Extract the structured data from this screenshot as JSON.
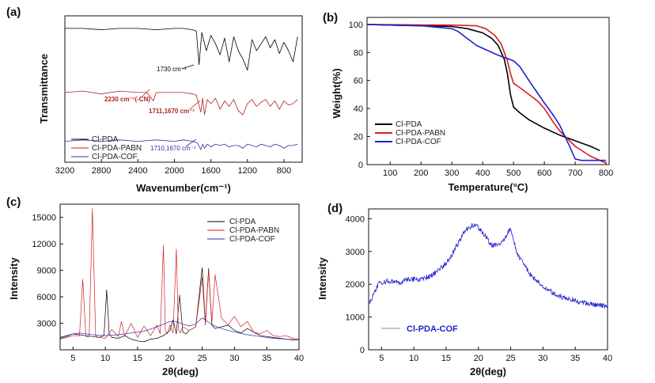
{
  "chart_data": [
    {
      "panel": "(a)",
      "type": "line",
      "xlabel": "Wavenumber(cm⁻¹)",
      "ylabel": "Transmittance",
      "xlim": [
        3200,
        600
      ],
      "x_ticks": [
        3200,
        2800,
        2400,
        2000,
        1600,
        1200,
        800
      ],
      "series": [
        {
          "name": "Cl-PDA",
          "color": "#000000",
          "x": [
            3200,
            3000,
            2800,
            2600,
            2400,
            2200,
            2000,
            1900,
            1800,
            1760,
            1730,
            1700,
            1650,
            1600,
            1550,
            1500,
            1450,
            1400,
            1350,
            1300,
            1250,
            1200,
            1150,
            1100,
            1050,
            1000,
            950,
            900,
            850,
            800,
            750,
            700,
            650
          ],
          "y": [
            96,
            96,
            95,
            96,
            96,
            95,
            96,
            96,
            95,
            94,
            70,
            93,
            80,
            91,
            85,
            77,
            89,
            72,
            90,
            80,
            74,
            66,
            88,
            80,
            85,
            90,
            82,
            88,
            78,
            86,
            80,
            72,
            90
          ]
        },
        {
          "name": "Cl-PDA-PABN",
          "color": "#b22222",
          "x": [
            3200,
            3000,
            2800,
            2600,
            2400,
            2300,
            2230,
            2200,
            2000,
            1900,
            1800,
            1760,
            1711,
            1690,
            1670,
            1640,
            1600,
            1550,
            1500,
            1450,
            1400,
            1350,
            1300,
            1250,
            1200,
            1150,
            1100,
            1050,
            1000,
            950,
            900,
            850,
            800,
            750,
            700,
            650
          ],
          "y": [
            50,
            51,
            49,
            51,
            50,
            50,
            44,
            50,
            50,
            50,
            49,
            48,
            36,
            46,
            34,
            45,
            42,
            46,
            38,
            44,
            40,
            45,
            37,
            34,
            42,
            45,
            40,
            43,
            45,
            40,
            44,
            38,
            44,
            41,
            42,
            45
          ]
        },
        {
          "name": "Cl-PDA-COF",
          "color": "#3030a0",
          "x": [
            3200,
            3000,
            2800,
            2600,
            2400,
            2200,
            2000,
            1900,
            1800,
            1750,
            1710,
            1690,
            1670,
            1640,
            1600,
            1550,
            1500,
            1450,
            1400,
            1350,
            1300,
            1250,
            1200,
            1150,
            1100,
            1050,
            1000,
            950,
            900,
            850,
            800,
            750,
            700,
            650
          ],
          "y": [
            15,
            16,
            15,
            16,
            15,
            16,
            15,
            16,
            15,
            14,
            9,
            13,
            10,
            13,
            11,
            13,
            12,
            13,
            11,
            12,
            12,
            10,
            13,
            12,
            11,
            13,
            12,
            11,
            13,
            12,
            10,
            12,
            12,
            13
          ]
        }
      ],
      "annotations": [
        {
          "text": "1730 cm⁻¹",
          "color": "#000000",
          "x": 1760,
          "y": 70
        },
        {
          "text": "2230 cm⁻¹(-CN)",
          "color": "#b22222",
          "x": 2230,
          "y": 44
        },
        {
          "text": "1711,1670 cm⁻¹",
          "color": "#b22222",
          "x": 1690,
          "y": 36
        },
        {
          "text": "1710,1670 cm⁻¹",
          "color": "#3030a0",
          "x": 1720,
          "y": 9
        }
      ],
      "legend": [
        "Cl-PDA",
        "Cl-PDA-PABN",
        "Cl-PDA-COF"
      ],
      "legend_position": "bottom-left"
    },
    {
      "panel": "(b)",
      "type": "line",
      "xlabel": "Temperature(°C)",
      "ylabel": "Weight(%)",
      "xlim": [
        25,
        810
      ],
      "ylim": [
        0,
        105
      ],
      "x_ticks": [
        100,
        200,
        300,
        400,
        500,
        600,
        700,
        800
      ],
      "y_ticks": [
        0,
        20,
        40,
        60,
        80,
        100
      ],
      "series": [
        {
          "name": "Cl-PDA",
          "color": "#000000",
          "x": [
            25,
            100,
            200,
            300,
            350,
            400,
            430,
            450,
            470,
            480,
            490,
            500,
            520,
            550,
            600,
            650,
            700,
            750,
            780
          ],
          "y": [
            100,
            99.5,
            99,
            98.5,
            97,
            94,
            90,
            85,
            75,
            65,
            50,
            41,
            37,
            32,
            26,
            21,
            17,
            13,
            10
          ]
        },
        {
          "name": "Cl-PDA-PABN",
          "color": "#d42020",
          "x": [
            25,
            100,
            200,
            300,
            380,
            410,
            440,
            460,
            480,
            490,
            500,
            520,
            550,
            580,
            600,
            630,
            650,
            700,
            750,
            790,
            800
          ],
          "y": [
            100,
            99.8,
            99.6,
            99.5,
            99,
            97,
            92,
            86,
            74,
            65,
            58,
            55,
            50,
            45,
            40,
            30,
            24,
            13,
            6,
            2,
            1
          ]
        },
        {
          "name": "Cl-PDA-COF",
          "color": "#1f1fd0",
          "x": [
            25,
            100,
            200,
            300,
            320,
            350,
            380,
            400,
            450,
            500,
            520,
            550,
            600,
            630,
            650,
            680,
            700,
            720,
            780,
            800
          ],
          "y": [
            100,
            99.5,
            99,
            97,
            95,
            90,
            85,
            83,
            78,
            74,
            70,
            60,
            44,
            35,
            28,
            14,
            4,
            3,
            3,
            3
          ]
        }
      ],
      "legend": [
        "Cl-PDA",
        "Cl-PDA-PABN",
        "Cl-PDA-COF"
      ],
      "legend_position": "bottom-left"
    },
    {
      "panel": "(c)",
      "type": "line",
      "xlabel": "2θ(deg)",
      "ylabel": "Intensity",
      "xlim": [
        3,
        40
      ],
      "ylim": [
        0,
        16500
      ],
      "x_ticks": [
        5,
        10,
        15,
        20,
        25,
        30,
        35,
        40
      ],
      "y_ticks": [
        3000,
        6000,
        9000,
        12000,
        15000
      ],
      "series": [
        {
          "name": "Cl-PDA",
          "color": "#000000",
          "x": [
            3,
            4,
            5,
            6,
            7,
            8,
            9,
            9.8,
            10.2,
            10.6,
            11,
            12,
            13,
            14,
            15,
            16,
            17,
            18,
            19,
            20,
            20.5,
            21,
            21.5,
            22,
            22.5,
            23,
            24,
            25,
            25.5,
            26,
            26.5,
            27,
            28,
            29,
            30,
            31,
            32,
            33,
            34,
            35,
            36,
            37,
            38,
            39,
            40
          ],
          "y": [
            1400,
            1600,
            1800,
            1700,
            1600,
            1500,
            1400,
            1600,
            6800,
            1800,
            1400,
            1300,
            1600,
            1200,
            1000,
            900,
            1200,
            1300,
            1600,
            2200,
            3400,
            1800,
            6200,
            2000,
            1800,
            2200,
            2600,
            9300,
            3000,
            9200,
            2800,
            2400,
            2600,
            2800,
            2200,
            1900,
            2400,
            2000,
            1600,
            1500,
            1400,
            1300,
            1200,
            1100,
            1100
          ]
        },
        {
          "name": "Cl-PDA-PABN",
          "color": "#d42020",
          "x": [
            3,
            4,
            5,
            6,
            6.5,
            7,
            7.5,
            8,
            8.5,
            9,
            10,
            11,
            12,
            12.5,
            13,
            14,
            15,
            16,
            17,
            18,
            18.5,
            19,
            19.3,
            19.6,
            20,
            20.5,
            21,
            21.3,
            21.6,
            22,
            23,
            24,
            25,
            25.5,
            26,
            26.5,
            27,
            28,
            29,
            30,
            31,
            32,
            33,
            34,
            35,
            36,
            37,
            38,
            39,
            40
          ],
          "y": [
            1200,
            1400,
            1600,
            1600,
            8000,
            1500,
            1500,
            16000,
            1600,
            1400,
            1300,
            2300,
            1500,
            3200,
            1500,
            3000,
            1400,
            2700,
            1600,
            2800,
            1800,
            11800,
            2200,
            1800,
            2800,
            1900,
            11400,
            2400,
            1900,
            2600,
            2200,
            2600,
            8200,
            2800,
            9000,
            3000,
            8500,
            3600,
            2800,
            3800,
            2600,
            3200,
            2000,
            1800,
            2200,
            1600,
            1500,
            1600,
            1300,
            1200
          ]
        },
        {
          "name": "Cl-PDA-COF",
          "color": "#2828c8",
          "x": [
            3,
            4,
            5,
            6,
            8,
            10,
            12,
            14,
            16,
            18,
            19,
            20,
            21,
            22,
            23,
            24,
            24.5,
            25,
            25.5,
            26,
            27,
            28,
            30,
            32,
            34,
            36,
            38,
            40
          ],
          "y": [
            1300,
            1500,
            1800,
            1900,
            1700,
            1600,
            1700,
            1900,
            2100,
            2600,
            2900,
            3200,
            3200,
            2900,
            2700,
            2900,
            3300,
            3600,
            3400,
            3100,
            2700,
            2400,
            2000,
            1700,
            1500,
            1300,
            1200,
            1100
          ]
        }
      ],
      "legend": [
        "Cl-PDA",
        "Cl-PDA-PABN",
        "Cl-PDA-COF"
      ],
      "legend_position": "top-right"
    },
    {
      "panel": "(d)",
      "type": "line",
      "xlabel": "2θ(deg)",
      "ylabel": "Intensity",
      "xlim": [
        3,
        40
      ],
      "ylim": [
        0,
        4300
      ],
      "x_ticks": [
        5,
        10,
        15,
        20,
        25,
        30,
        35,
        40
      ],
      "y_ticks": [
        0,
        1000,
        2000,
        3000,
        4000
      ],
      "series": [
        {
          "name": "Cl-PDA-COF",
          "color": "#1f1fd0",
          "x": [
            3,
            3.5,
            4,
            4.5,
            5,
            6,
            7,
            8,
            9,
            10,
            11,
            12,
            13,
            14,
            15,
            16,
            17,
            18,
            19,
            20,
            21,
            22,
            23,
            24,
            24.5,
            25,
            25.5,
            26,
            27,
            28,
            29,
            30,
            31,
            32,
            33,
            34,
            35,
            36,
            37,
            38,
            39,
            40
          ],
          "y": [
            1450,
            1550,
            1800,
            2000,
            2050,
            2100,
            2050,
            2050,
            2150,
            2150,
            2150,
            2200,
            2300,
            2450,
            2650,
            2950,
            3300,
            3650,
            3800,
            3750,
            3500,
            3200,
            3200,
            3350,
            3550,
            3700,
            3300,
            2950,
            2600,
            2300,
            2100,
            1950,
            1800,
            1700,
            1600,
            1550,
            1500,
            1450,
            1400,
            1380,
            1350,
            1350
          ]
        }
      ],
      "legend": [
        "Cl-PDA-COF"
      ],
      "legend_position": "bottom-left"
    }
  ]
}
